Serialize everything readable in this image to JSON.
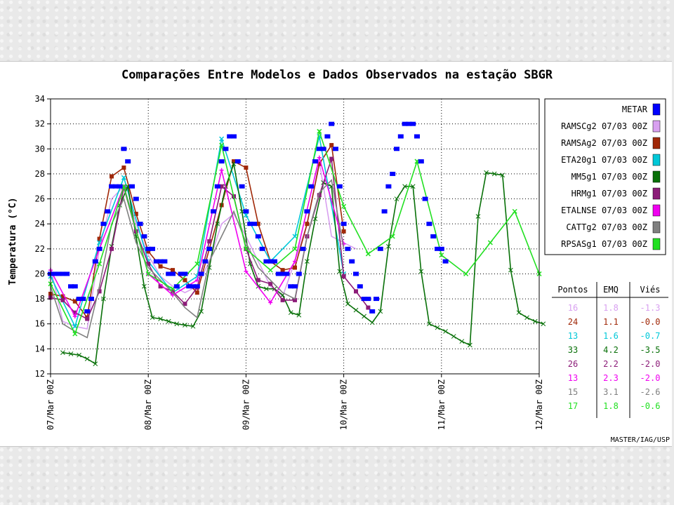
{
  "chart_data": {
    "type": "line",
    "title": "Comparações Entre Modelos e Dados Observados na estação SBGR",
    "xlabel": "",
    "ylabel": "Temperatura (°C)",
    "xlim": [
      0,
      120
    ],
    "ylim": [
      12,
      34
    ],
    "yticks": [
      12,
      14,
      16,
      18,
      20,
      22,
      24,
      26,
      28,
      30,
      32,
      34
    ],
    "xticks": [
      {
        "x": 0,
        "label": "07/Mar 00Z"
      },
      {
        "x": 24,
        "label": "08/Mar 00Z"
      },
      {
        "x": 48,
        "label": "09/Mar 00Z"
      },
      {
        "x": 72,
        "label": "10/Mar 00Z"
      },
      {
        "x": 96,
        "label": "11/Mar 00Z"
      },
      {
        "x": 120,
        "label": "12/Mar 00Z"
      }
    ],
    "grid": true,
    "legend_position": "right",
    "x_units": "hours since 07/Mar 00Z",
    "observed": {
      "name": "METAR",
      "color": "#0000ff",
      "points": [
        [
          0,
          20
        ],
        [
          1,
          20
        ],
        [
          2,
          20
        ],
        [
          3,
          20
        ],
        [
          4,
          20
        ],
        [
          5,
          19
        ],
        [
          6,
          19
        ],
        [
          7,
          18
        ],
        [
          8,
          18
        ],
        [
          9,
          17
        ],
        [
          10,
          18
        ],
        [
          11,
          21
        ],
        [
          12,
          22
        ],
        [
          13,
          24
        ],
        [
          14,
          25
        ],
        [
          15,
          27
        ],
        [
          16,
          27
        ],
        [
          17,
          27
        ],
        [
          18,
          30
        ],
        [
          19,
          29
        ],
        [
          20,
          27
        ],
        [
          21,
          26
        ],
        [
          22,
          24
        ],
        [
          23,
          23
        ],
        [
          24,
          22
        ],
        [
          25,
          22
        ],
        [
          26,
          21
        ],
        [
          27,
          21
        ],
        [
          28,
          21
        ],
        [
          29,
          20
        ],
        [
          30,
          20
        ],
        [
          31,
          19
        ],
        [
          32,
          20
        ],
        [
          33,
          20
        ],
        [
          34,
          19
        ],
        [
          35,
          19
        ],
        [
          36,
          19
        ],
        [
          37,
          20
        ],
        [
          38,
          21
        ],
        [
          39,
          22
        ],
        [
          40,
          25
        ],
        [
          41,
          27
        ],
        [
          42,
          29
        ],
        [
          43,
          30
        ],
        [
          44,
          31
        ],
        [
          45,
          31
        ],
        [
          46,
          29
        ],
        [
          47,
          27
        ],
        [
          48,
          25
        ],
        [
          49,
          24
        ],
        [
          50,
          24
        ],
        [
          51,
          23
        ],
        [
          52,
          22
        ],
        [
          53,
          21
        ],
        [
          54,
          21
        ],
        [
          55,
          21
        ],
        [
          56,
          20
        ],
        [
          57,
          20
        ],
        [
          58,
          20
        ],
        [
          59,
          19
        ],
        [
          60,
          19
        ],
        [
          61,
          20
        ],
        [
          62,
          22
        ],
        [
          63,
          25
        ],
        [
          64,
          27
        ],
        [
          65,
          29
        ],
        [
          66,
          30
        ],
        [
          67,
          30
        ],
        [
          68,
          31
        ],
        [
          69,
          32
        ],
        [
          70,
          30
        ],
        [
          71,
          27
        ],
        [
          72,
          24
        ],
        [
          73,
          22
        ],
        [
          74,
          21
        ],
        [
          75,
          20
        ],
        [
          76,
          19
        ],
        [
          77,
          18
        ],
        [
          78,
          18
        ],
        [
          79,
          17
        ],
        [
          80,
          18
        ],
        [
          81,
          22
        ],
        [
          82,
          25
        ],
        [
          83,
          27
        ],
        [
          84,
          28
        ],
        [
          85,
          30
        ],
        [
          86,
          31
        ],
        [
          87,
          32
        ],
        [
          88,
          32
        ],
        [
          89,
          32
        ],
        [
          90,
          31
        ],
        [
          91,
          29
        ],
        [
          92,
          26
        ],
        [
          93,
          24
        ],
        [
          94,
          23
        ],
        [
          95,
          22
        ],
        [
          96,
          22
        ],
        [
          97,
          21
        ]
      ]
    },
    "series": [
      {
        "name": "RAMSCg2 07/03 00Z",
        "color": "#d8a0f0",
        "marker": "none",
        "x": [
          0,
          3,
          6,
          9,
          12,
          15,
          18,
          21,
          24,
          27,
          30,
          33,
          36,
          39,
          42,
          45,
          48,
          51,
          54,
          57,
          60,
          63,
          66,
          69,
          72,
          75
        ],
        "y": [
          20.5,
          16.2,
          15.8,
          15.6,
          22.0,
          26.0,
          27.0,
          24.0,
          21.5,
          19.8,
          19.0,
          18.5,
          19.0,
          21.0,
          24.0,
          24.8,
          23.0,
          21.0,
          19.0,
          18.2,
          21.0,
          24.0,
          29.0,
          23.0,
          22.5,
          22.0
        ]
      },
      {
        "name": "RAMSAg2 07/03 00Z",
        "color": "#a02808",
        "marker": "square",
        "x": [
          0,
          3,
          6,
          9,
          12,
          15,
          18,
          21,
          24,
          27,
          30,
          33,
          36,
          39,
          42,
          45,
          48,
          51,
          54,
          57,
          60,
          63,
          66,
          69,
          72
        ],
        "y": [
          18.4,
          18.2,
          17.8,
          16.5,
          22.8,
          27.8,
          28.5,
          24.8,
          21.8,
          20.6,
          20.3,
          19.5,
          18.5,
          22.0,
          25.5,
          29.0,
          28.5,
          24.0,
          21.0,
          20.3,
          20.5,
          24.0,
          28.8,
          30.3,
          23.4
        ]
      },
      {
        "name": "ETA20g1 07/03 00Z",
        "color": "#00c8d8",
        "marker": "x",
        "x": [
          0,
          6,
          12,
          18,
          24,
          30,
          36,
          42,
          48,
          54,
          60,
          66,
          72
        ],
        "y": [
          19.8,
          15.8,
          22.5,
          27.7,
          21.0,
          18.5,
          19.8,
          30.8,
          24.7,
          21.0,
          23.0,
          31.0,
          20.0
        ]
      },
      {
        "name": "MM5g1 07/03 00Z",
        "color": "#087008",
        "marker": "cross",
        "x": [
          3,
          5,
          7,
          9,
          11,
          13,
          15,
          17,
          19,
          21,
          23,
          25,
          27,
          29,
          31,
          33,
          35,
          37,
          39,
          41,
          43,
          45,
          47,
          49,
          51,
          53,
          55,
          57,
          59,
          61,
          63,
          65,
          67,
          69,
          71,
          73,
          75,
          77,
          79,
          81,
          83,
          85,
          87,
          89,
          91,
          93,
          95,
          97,
          99,
          101,
          103,
          105,
          107,
          109,
          111,
          113,
          115,
          117,
          119,
          121
        ],
        "y": [
          13.7,
          13.6,
          13.5,
          13.2,
          12.8,
          18.0,
          22.2,
          25.5,
          27.0,
          23.0,
          19.0,
          16.5,
          16.4,
          16.2,
          16.0,
          15.9,
          15.8,
          17.0,
          20.5,
          24.0,
          27.0,
          28.8,
          25.0,
          20.8,
          19.0,
          18.8,
          18.8,
          18.3,
          16.9,
          16.7,
          21.0,
          24.4,
          27.3,
          27.0,
          20.2,
          17.6,
          17.1,
          16.6,
          16.1,
          17.0,
          22.2,
          26.0,
          27.0,
          27.0,
          20.2,
          16.0,
          15.7,
          15.4,
          15.0,
          14.6,
          14.3,
          24.6,
          28.1,
          28.0,
          27.9,
          20.3,
          16.9,
          16.5,
          16.2,
          16.0
        ]
      },
      {
        "name": "HRMg1 07/03 00Z",
        "color": "#8c1c78",
        "marker": "square",
        "x": [
          0,
          3,
          6,
          9,
          12,
          15,
          18,
          21,
          24,
          27,
          30,
          33,
          36,
          39,
          42,
          45,
          48,
          51,
          54,
          57,
          60,
          63,
          66,
          69,
          72,
          75,
          78
        ],
        "y": [
          18.1,
          17.9,
          16.9,
          16.4,
          18.6,
          22.0,
          26.9,
          23.4,
          20.8,
          19.0,
          18.6,
          17.6,
          18.9,
          22.6,
          27.0,
          26.2,
          22.0,
          19.5,
          19.2,
          17.9,
          17.9,
          23.0,
          26.3,
          29.2,
          19.8,
          18.6,
          17.3
        ]
      },
      {
        "name": "ETALNSE 07/03 00Z",
        "color": "#f000f0",
        "marker": "plus",
        "x": [
          0,
          6,
          12,
          18,
          24,
          30,
          36,
          42,
          48,
          54,
          60,
          66,
          72
        ],
        "y": [
          20.3,
          16.6,
          22.0,
          27.0,
          20.0,
          18.3,
          19.5,
          28.3,
          20.2,
          17.7,
          21.0,
          29.3,
          22.4
        ]
      },
      {
        "name": "CATTg2 07/03 00Z",
        "color": "#808080",
        "marker": "none",
        "x": [
          0,
          3,
          6,
          9,
          12,
          15,
          18,
          21,
          24,
          27,
          30,
          33,
          36,
          39,
          42,
          45,
          48,
          51,
          54,
          57,
          60,
          63,
          66,
          69,
          72
        ],
        "y": [
          19.0,
          16.0,
          15.4,
          14.9,
          19.0,
          24.0,
          26.0,
          22.5,
          20.5,
          19.5,
          18.5,
          17.3,
          16.5,
          21.0,
          23.0,
          25.0,
          22.5,
          20.5,
          19.5,
          18.5,
          18.0,
          23.0,
          26.5,
          27.5,
          22.0
        ]
      },
      {
        "name": "RPSASg1 07/03 00Z",
        "color": "#22e022",
        "marker": "x",
        "x": [
          0,
          6,
          12,
          18,
          24,
          30,
          36,
          42,
          48,
          54,
          60,
          66,
          72,
          78,
          84,
          90,
          96,
          102,
          108,
          114,
          120
        ],
        "y": [
          19.2,
          15.2,
          20.8,
          27.0,
          20.0,
          18.8,
          20.8,
          30.3,
          22.0,
          20.3,
          22.0,
          31.4,
          25.4,
          21.6,
          23.0,
          29.0,
          21.5,
          20.0,
          22.5,
          25.0,
          20.0
        ]
      }
    ],
    "stats_table": {
      "headers": [
        "Pontos",
        "EMQ",
        "Viés"
      ],
      "rows": [
        {
          "pontos": "16",
          "emq": "1.8",
          "vies": "-1.3",
          "color": "#d8a0f0"
        },
        {
          "pontos": "24",
          "emq": "1.1",
          "vies": "-0.0",
          "color": "#a02808"
        },
        {
          "pontos": "13",
          "emq": "1.6",
          "vies": "-0.7",
          "color": "#00c8d8"
        },
        {
          "pontos": "33",
          "emq": "4.2",
          "vies": "-3.5",
          "color": "#087008"
        },
        {
          "pontos": "26",
          "emq": "2.2",
          "vies": "-2.0",
          "color": "#8c1c78"
        },
        {
          "pontos": "13",
          "emq": "2.3",
          "vies": "-2.0",
          "color": "#f000f0"
        },
        {
          "pontos": "15",
          "emq": "3.1",
          "vies": "-2.6",
          "color": "#808080"
        },
        {
          "pontos": "17",
          "emq": "1.8",
          "vies": "-0.6",
          "color": "#22e022"
        }
      ]
    },
    "credit": "MASTER/IAG/USP"
  }
}
